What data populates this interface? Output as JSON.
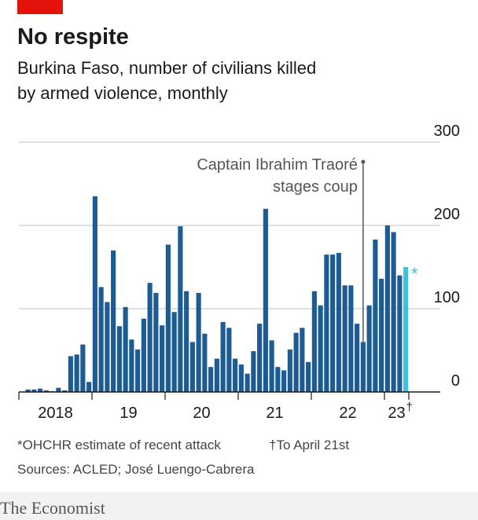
{
  "chart_data": {
    "type": "bar",
    "title": "No respite",
    "subtitle": [
      "Burkina Faso, number of civilians killed",
      "by armed violence, monthly"
    ],
    "series": [
      {
        "color": "#1d5c92",
        "values": [
          0,
          3,
          3,
          4,
          2,
          1,
          5,
          2,
          43,
          45,
          57,
          12,
          235,
          126,
          108,
          170,
          79,
          102,
          63,
          51,
          88,
          131,
          119,
          80,
          177,
          96,
          199,
          121,
          60,
          119,
          70,
          30,
          40,
          84,
          77,
          40,
          33,
          22,
          49,
          82,
          220,
          62,
          30,
          26,
          51,
          71,
          77,
          36,
          121,
          104,
          165,
          165,
          167,
          128,
          128,
          82,
          60,
          104,
          183,
          136,
          200,
          192,
          140,
          0
        ]
      },
      {
        "color": "#3ec0d9",
        "values": [
          null,
          null,
          null,
          null,
          null,
          null,
          null,
          null,
          null,
          null,
          null,
          null,
          null,
          null,
          null,
          null,
          null,
          null,
          null,
          null,
          null,
          null,
          null,
          null,
          null,
          null,
          null,
          null,
          null,
          null,
          null,
          null,
          null,
          null,
          null,
          null,
          null,
          null,
          null,
          null,
          null,
          null,
          null,
          null,
          null,
          null,
          null,
          null,
          null,
          null,
          null,
          null,
          null,
          null,
          null,
          null,
          null,
          null,
          null,
          null,
          null,
          null,
          null,
          150
        ]
      }
    ],
    "xlim": [
      0,
      64
    ],
    "xticks": [
      {
        "value": 0,
        "label": "2018"
      },
      {
        "value": 12,
        "label": "19"
      },
      {
        "value": 24,
        "label": "20"
      },
      {
        "value": 36,
        "label": "21"
      },
      {
        "value": 48,
        "label": "22"
      },
      {
        "value": 60,
        "label": "23"
      }
    ],
    "ylim": [
      0,
      300
    ],
    "yticks": [
      0,
      100,
      200,
      300
    ],
    "grid": true,
    "annotations": {
      "coup": [
        "Captain Ibrahim Traoré",
        "stages coup"
      ],
      "asterisk": "*",
      "dagger": "†"
    },
    "footnotes": {
      "estimate": "*OHCHR estimate of recent attack",
      "dagger": "†To April 21st",
      "sources": "Sources: ACLED; José Luengo-Cabrera"
    },
    "brand": "The Economist"
  }
}
